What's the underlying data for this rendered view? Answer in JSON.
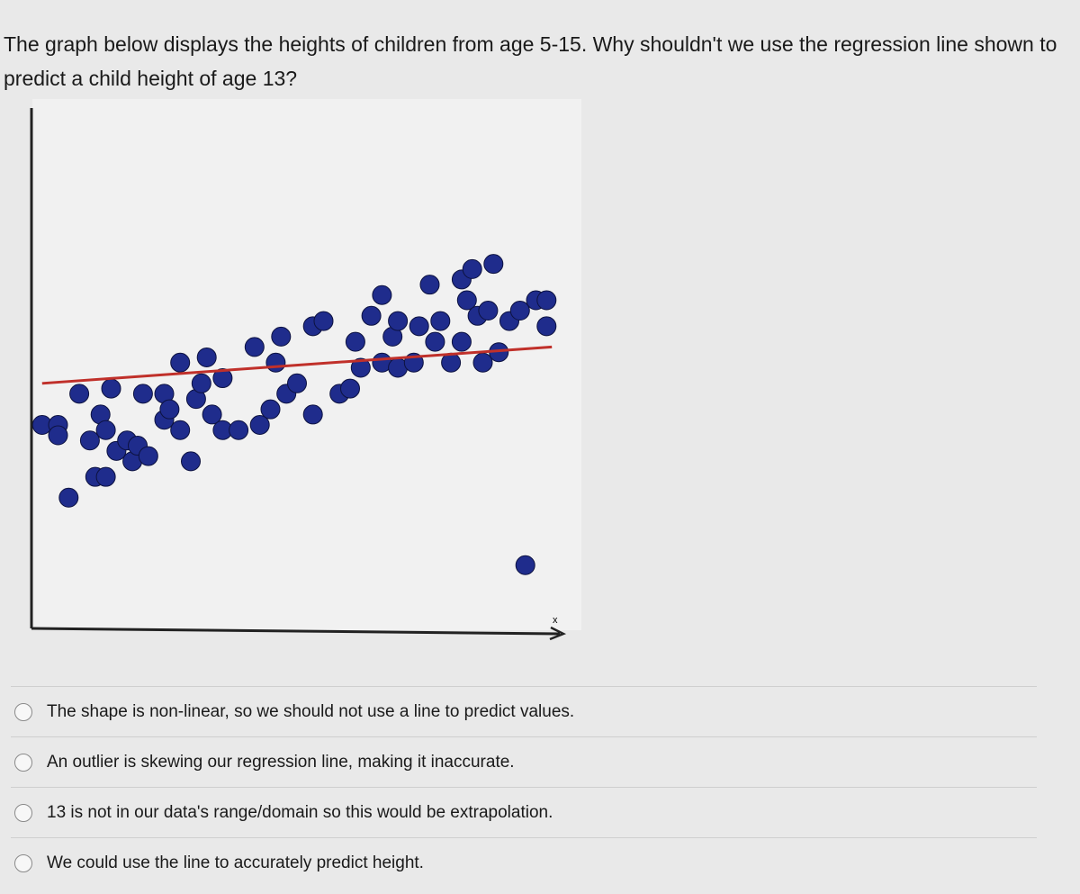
{
  "question": "The graph below displays the heights of children from age 5-15. Why shouldn't we use the regression line shown to predict a child height of age 13?",
  "chart_data": {
    "type": "scatter",
    "x_label": "x",
    "x": [
      2,
      5,
      5,
      7,
      9,
      11,
      12,
      14,
      13,
      14,
      15,
      16,
      18,
      19,
      20,
      22,
      21,
      25,
      25,
      26,
      28,
      28,
      30,
      31,
      32,
      33,
      34,
      36,
      36,
      39,
      42,
      43,
      45,
      46,
      47,
      48,
      50,
      53,
      53,
      55,
      58,
      60,
      61,
      62,
      64,
      66,
      66,
      68,
      69,
      69,
      72,
      73,
      75,
      76,
      77,
      79,
      81,
      81,
      82,
      83,
      84,
      85,
      86,
      87,
      88,
      90,
      92,
      93,
      95,
      97,
      97
    ],
    "y": [
      39,
      39,
      37,
      25,
      45,
      36,
      29,
      29,
      41,
      38,
      46,
      34,
      36,
      32,
      35,
      33,
      45,
      40,
      45,
      42,
      38,
      51,
      32,
      44,
      47,
      52,
      41,
      48,
      38,
      38,
      54,
      39,
      42,
      51,
      56,
      45,
      47,
      58,
      41,
      59,
      45,
      46,
      55,
      50,
      60,
      64,
      51,
      56,
      50,
      59,
      51,
      58,
      66,
      55,
      59,
      51,
      67,
      55,
      63,
      69,
      60,
      51,
      61,
      70,
      53,
      59,
      61,
      12,
      63,
      58,
      63
    ],
    "color": "#1f2c8c",
    "regression_line": {
      "x": [
        2,
        98
      ],
      "y": [
        47,
        54
      ],
      "color": "#c0302a"
    },
    "xlim": [
      0,
      100
    ],
    "ylim": [
      0,
      100
    ]
  },
  "options": [
    "The shape is non-linear, so we should not use a line to predict values.",
    "An outlier is skewing our regression line, making it inaccurate.",
    "13 is not in our data's range/domain so this would be extrapolation.",
    "We could use the line to accurately predict height."
  ]
}
